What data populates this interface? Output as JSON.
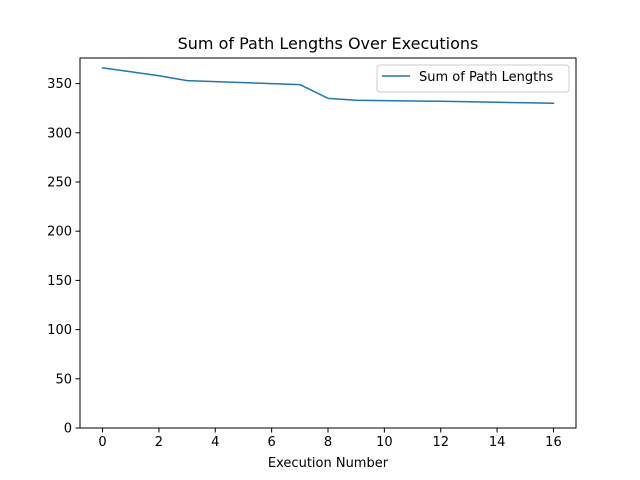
{
  "chart_data": {
    "type": "line",
    "title": "Sum of Path Lengths Over Executions",
    "xlabel": "Execution Number",
    "ylabel": "",
    "xlim": [
      -0.8,
      16.8
    ],
    "ylim": [
      0,
      376
    ],
    "xticks": [
      0,
      2,
      4,
      6,
      8,
      10,
      12,
      14,
      16
    ],
    "yticks": [
      0,
      50,
      100,
      150,
      200,
      250,
      300,
      350
    ],
    "grid": false,
    "legend_position": "top-right",
    "series": [
      {
        "name": "Sum of Path Lengths",
        "color": "#1f77b4",
        "x": [
          0,
          1,
          2,
          3,
          4,
          5,
          6,
          7,
          8,
          9,
          10,
          11,
          12,
          13,
          14,
          15,
          16
        ],
        "y": [
          366,
          362,
          358,
          353,
          352,
          351,
          350,
          349,
          335,
          333,
          332.7,
          332.3,
          332,
          331.5,
          331,
          330.5,
          330
        ]
      }
    ]
  }
}
